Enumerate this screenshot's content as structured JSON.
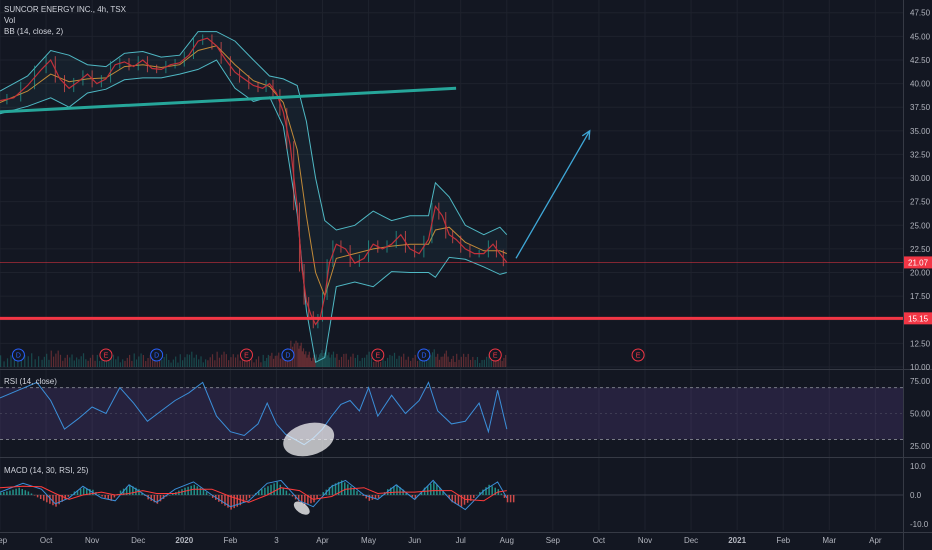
{
  "header": {
    "symbol_title": "SUNCOR ENERGY INC., 4h, TSX",
    "vol_label": "Vol",
    "bb_label": "BB (14, close, 2)",
    "rsi_label": "RSI (14, close)",
    "macd_label": "MACD (14, 30, RSI, 25)"
  },
  "colors": {
    "background": "#131722",
    "price": "#c2303a",
    "bb_bands": "#4fb8c4",
    "bb_basis": "#d4963a",
    "trendline": "#26a69a",
    "support": "#f23645",
    "rsi_line": "#3b8fd9",
    "rsi_band": "#7e57c2",
    "macd_line": "#3b8fd9",
    "signal_line": "#ff3b3b",
    "hist_up": "#26a69a",
    "hist_down": "#ef5350"
  },
  "chart_data": [
    {
      "type": "line",
      "panel": "price",
      "y_ticks": [
        "47.50",
        "45.00",
        "42.50",
        "40.00",
        "37.50",
        "35.00",
        "32.50",
        "30.00",
        "27.50",
        "25.00",
        "22.50",
        "20.00",
        "17.50",
        "15.00",
        "12.50",
        "10.00"
      ],
      "ylim": [
        10,
        48
      ],
      "x_labels": [
        "Sep",
        "Oct",
        "Nov",
        "Dec",
        "2020",
        "Feb",
        "3",
        "Apr",
        "May",
        "Jun",
        "Jul",
        "Aug",
        "Sep",
        "Oct",
        "Nov",
        "Dec",
        "2021",
        "Feb",
        "Mar",
        "Apr"
      ],
      "x_label_months": [
        0,
        1,
        2,
        3,
        4,
        5,
        6,
        7,
        8,
        9,
        10,
        11,
        12,
        13,
        14,
        15,
        16,
        17,
        18,
        19
      ],
      "xlim": [
        0,
        19.6
      ],
      "close": [
        [
          0.0,
          38.2
        ],
        [
          0.3,
          38.5
        ],
        [
          0.6,
          39.8
        ],
        [
          0.9,
          41.5
        ],
        [
          1.1,
          42.5
        ],
        [
          1.3,
          40.5
        ],
        [
          1.5,
          39.5
        ],
        [
          1.7,
          40.2
        ],
        [
          1.9,
          41.0
        ],
        [
          2.1,
          40.0
        ],
        [
          2.3,
          40.5
        ],
        [
          2.5,
          42.0
        ],
        [
          2.7,
          42.3
        ],
        [
          2.9,
          41.8
        ],
        [
          3.1,
          42.5
        ],
        [
          3.3,
          41.6
        ],
        [
          3.5,
          41.5
        ],
        [
          3.7,
          42.0
        ],
        [
          3.9,
          42.2
        ],
        [
          4.1,
          43.0
        ],
        [
          4.3,
          44.5
        ],
        [
          4.5,
          44.8
        ],
        [
          4.7,
          44.0
        ],
        [
          4.9,
          42.5
        ],
        [
          5.1,
          41.2
        ],
        [
          5.3,
          40.5
        ],
        [
          5.5,
          39.8
        ],
        [
          5.7,
          39.5
        ],
        [
          5.85,
          40.0
        ],
        [
          6.0,
          39.0
        ],
        [
          6.15,
          37.0
        ],
        [
          6.3,
          33.5
        ],
        [
          6.45,
          27.0
        ],
        [
          6.55,
          20.5
        ],
        [
          6.65,
          17.0
        ],
        [
          6.75,
          15.5
        ],
        [
          6.85,
          14.5
        ],
        [
          6.95,
          15.2
        ],
        [
          7.05,
          17.5
        ],
        [
          7.15,
          21.0
        ],
        [
          7.3,
          23.0
        ],
        [
          7.5,
          22.5
        ],
        [
          7.7,
          21.0
        ],
        [
          7.9,
          21.5
        ],
        [
          8.1,
          23.0
        ],
        [
          8.3,
          22.5
        ],
        [
          8.5,
          23.0
        ],
        [
          8.7,
          24.0
        ],
        [
          8.9,
          22.5
        ],
        [
          9.1,
          22.0
        ],
        [
          9.3,
          23.5
        ],
        [
          9.45,
          27.0
        ],
        [
          9.6,
          26.0
        ],
        [
          9.75,
          24.0
        ],
        [
          9.9,
          23.5
        ],
        [
          10.1,
          22.5
        ],
        [
          10.3,
          22.0
        ],
        [
          10.5,
          22.0
        ],
        [
          10.7,
          23.0
        ],
        [
          10.85,
          22.0
        ],
        [
          11.0,
          21.07
        ]
      ],
      "bb_upper": [
        [
          0.0,
          39.2
        ],
        [
          0.6,
          40.8
        ],
        [
          1.1,
          43.5
        ],
        [
          1.5,
          43.0
        ],
        [
          1.9,
          42.0
        ],
        [
          2.3,
          41.8
        ],
        [
          2.7,
          43.2
        ],
        [
          3.1,
          43.4
        ],
        [
          3.5,
          42.8
        ],
        [
          3.9,
          43.0
        ],
        [
          4.3,
          45.5
        ],
        [
          4.7,
          45.5
        ],
        [
          5.1,
          44.5
        ],
        [
          5.5,
          42.5
        ],
        [
          5.85,
          40.8
        ],
        [
          6.15,
          40.5
        ],
        [
          6.45,
          39.8
        ],
        [
          6.65,
          36.0
        ],
        [
          6.85,
          30.0
        ],
        [
          7.05,
          25.5
        ],
        [
          7.3,
          24.5
        ],
        [
          7.7,
          25.0
        ],
        [
          8.1,
          26.5
        ],
        [
          8.5,
          25.5
        ],
        [
          8.9,
          26.0
        ],
        [
          9.3,
          26.0
        ],
        [
          9.45,
          29.5
        ],
        [
          9.75,
          28.0
        ],
        [
          10.1,
          25.0
        ],
        [
          10.5,
          24.0
        ],
        [
          10.85,
          24.8
        ],
        [
          11.0,
          24.0
        ]
      ],
      "bb_basis": [
        [
          0.0,
          38.0
        ],
        [
          0.6,
          39.2
        ],
        [
          1.1,
          41.0
        ],
        [
          1.5,
          40.2
        ],
        [
          1.9,
          40.5
        ],
        [
          2.3,
          40.6
        ],
        [
          2.7,
          41.8
        ],
        [
          3.1,
          42.0
        ],
        [
          3.5,
          41.7
        ],
        [
          3.9,
          42.0
        ],
        [
          4.3,
          43.5
        ],
        [
          4.7,
          44.0
        ],
        [
          5.1,
          42.0
        ],
        [
          5.5,
          40.3
        ],
        [
          5.85,
          39.7
        ],
        [
          6.15,
          38.0
        ],
        [
          6.45,
          33.0
        ],
        [
          6.65,
          26.0
        ],
        [
          6.85,
          20.0
        ],
        [
          7.05,
          17.5
        ],
        [
          7.3,
          21.5
        ],
        [
          7.7,
          22.0
        ],
        [
          8.1,
          22.5
        ],
        [
          8.5,
          22.8
        ],
        [
          8.9,
          23.0
        ],
        [
          9.3,
          23.0
        ],
        [
          9.45,
          24.5
        ],
        [
          9.75,
          24.8
        ],
        [
          10.1,
          23.2
        ],
        [
          10.5,
          22.3
        ],
        [
          10.85,
          22.3
        ],
        [
          11.0,
          22.0
        ]
      ],
      "bb_lower": [
        [
          0.0,
          36.8
        ],
        [
          0.6,
          37.6
        ],
        [
          1.1,
          38.5
        ],
        [
          1.5,
          37.5
        ],
        [
          1.9,
          39.0
        ],
        [
          2.3,
          39.4
        ],
        [
          2.7,
          40.4
        ],
        [
          3.1,
          40.6
        ],
        [
          3.5,
          40.6
        ],
        [
          3.9,
          41.0
        ],
        [
          4.3,
          41.5
        ],
        [
          4.7,
          42.5
        ],
        [
          5.1,
          39.5
        ],
        [
          5.5,
          38.1
        ],
        [
          5.85,
          38.6
        ],
        [
          6.15,
          35.5
        ],
        [
          6.45,
          26.2
        ],
        [
          6.65,
          16.0
        ],
        [
          6.85,
          10.5
        ],
        [
          7.05,
          11.0
        ],
        [
          7.3,
          18.5
        ],
        [
          7.7,
          19.0
        ],
        [
          8.1,
          18.5
        ],
        [
          8.5,
          20.1
        ],
        [
          8.9,
          20.0
        ],
        [
          9.3,
          20.0
        ],
        [
          9.45,
          19.5
        ],
        [
          9.75,
          21.6
        ],
        [
          10.1,
          21.4
        ],
        [
          10.5,
          20.6
        ],
        [
          10.85,
          19.8
        ],
        [
          11.0,
          20.0
        ]
      ],
      "trendline": [
        [
          0.0,
          37.0
        ],
        [
          9.9,
          39.5
        ]
      ],
      "projection_arrow": [
        [
          11.2,
          21.5
        ],
        [
          12.8,
          35.0
        ]
      ],
      "support_level": 15.15,
      "last_price": 21.07,
      "price_tags": [
        "21.07",
        "15.15"
      ],
      "events": [
        {
          "label": "D",
          "month": 0.4
        },
        {
          "label": "E",
          "month": 2.3
        },
        {
          "label": "D",
          "month": 3.4
        },
        {
          "label": "E",
          "month": 5.35
        },
        {
          "label": "D",
          "month": 6.25
        },
        {
          "label": "E",
          "month": 8.2
        },
        {
          "label": "D",
          "month": 9.2
        },
        {
          "label": "E",
          "month": 10.75
        },
        {
          "label": "E",
          "month": 13.85
        }
      ]
    },
    {
      "type": "line",
      "panel": "rsi",
      "y_ticks": [
        "75.00",
        "50.00",
        "25.00"
      ],
      "ylim": [
        18,
        82
      ],
      "band": [
        30,
        70
      ],
      "values": [
        [
          0.0,
          62
        ],
        [
          0.4,
          68
        ],
        [
          0.8,
          74
        ],
        [
          1.1,
          60
        ],
        [
          1.4,
          38
        ],
        [
          1.7,
          46
        ],
        [
          2.0,
          55
        ],
        [
          2.3,
          50
        ],
        [
          2.6,
          70
        ],
        [
          2.9,
          58
        ],
        [
          3.2,
          44
        ],
        [
          3.5,
          52
        ],
        [
          3.8,
          60
        ],
        [
          4.1,
          66
        ],
        [
          4.4,
          74
        ],
        [
          4.7,
          48
        ],
        [
          5.0,
          36
        ],
        [
          5.3,
          33
        ],
        [
          5.6,
          42
        ],
        [
          5.8,
          58
        ],
        [
          6.0,
          42
        ],
        [
          6.2,
          34
        ],
        [
          6.4,
          30
        ],
        [
          6.6,
          26
        ],
        [
          6.8,
          31
        ],
        [
          7.0,
          38
        ],
        [
          7.2,
          48
        ],
        [
          7.4,
          57
        ],
        [
          7.6,
          60
        ],
        [
          7.8,
          52
        ],
        [
          8.0,
          70
        ],
        [
          8.2,
          48
        ],
        [
          8.5,
          64
        ],
        [
          8.8,
          50
        ],
        [
          9.1,
          60
        ],
        [
          9.3,
          74
        ],
        [
          9.5,
          52
        ],
        [
          9.8,
          42
        ],
        [
          10.1,
          44
        ],
        [
          10.4,
          58
        ],
        [
          10.6,
          36
        ],
        [
          10.8,
          68
        ],
        [
          11.0,
          38
        ]
      ]
    },
    {
      "type": "bar",
      "panel": "macd",
      "y_ticks": [
        "10.0",
        "0.0",
        "-10.0"
      ],
      "ylim": [
        -12,
        12
      ],
      "histogram": [
        [
          0.0,
          0.8
        ],
        [
          0.2,
          1.5
        ],
        [
          0.4,
          2.5
        ],
        [
          0.6,
          1.2
        ],
        [
          0.8,
          -0.8
        ],
        [
          1.0,
          -2.5
        ],
        [
          1.2,
          -4.0
        ],
        [
          1.4,
          -1.5
        ],
        [
          1.6,
          1.2
        ],
        [
          1.8,
          2.5
        ],
        [
          2.0,
          1.8
        ],
        [
          2.2,
          -0.5
        ],
        [
          2.4,
          -2.0
        ],
        [
          2.6,
          1.5
        ],
        [
          2.8,
          3.5
        ],
        [
          3.0,
          2.0
        ],
        [
          3.2,
          -1.5
        ],
        [
          3.4,
          -3.0
        ],
        [
          3.6,
          -0.5
        ],
        [
          3.8,
          1.0
        ],
        [
          4.0,
          2.5
        ],
        [
          4.2,
          3.5
        ],
        [
          4.4,
          2.0
        ],
        [
          4.6,
          -1.0
        ],
        [
          4.8,
          -3.0
        ],
        [
          5.0,
          -5.0
        ],
        [
          5.2,
          -3.5
        ],
        [
          5.4,
          -1.0
        ],
        [
          5.6,
          1.5
        ],
        [
          5.8,
          3.0
        ],
        [
          6.0,
          4.5
        ],
        [
          6.2,
          1.5
        ],
        [
          6.4,
          -1.5
        ],
        [
          6.6,
          -3.5
        ],
        [
          6.8,
          -2.5
        ],
        [
          7.0,
          1.0
        ],
        [
          7.2,
          3.5
        ],
        [
          7.4,
          5.0
        ],
        [
          7.6,
          3.0
        ],
        [
          7.8,
          0.5
        ],
        [
          8.0,
          -2.0
        ],
        [
          8.2,
          -1.0
        ],
        [
          8.4,
          2.0
        ],
        [
          8.6,
          3.5
        ],
        [
          8.8,
          1.0
        ],
        [
          9.0,
          -1.5
        ],
        [
          9.2,
          2.5
        ],
        [
          9.4,
          4.5
        ],
        [
          9.6,
          1.5
        ],
        [
          9.8,
          -2.5
        ],
        [
          10.0,
          -4.0
        ],
        [
          10.2,
          -2.0
        ],
        [
          10.4,
          1.0
        ],
        [
          10.6,
          3.5
        ],
        [
          10.8,
          2.0
        ],
        [
          11.0,
          -2.5
        ]
      ],
      "macd_line": [
        [
          0.0,
          1.0
        ],
        [
          0.5,
          4.0
        ],
        [
          0.9,
          2.0
        ],
        [
          1.2,
          -3.0
        ],
        [
          1.5,
          -1.0
        ],
        [
          1.8,
          3.0
        ],
        [
          2.2,
          -1.0
        ],
        [
          2.5,
          -2.0
        ],
        [
          2.8,
          3.5
        ],
        [
          3.1,
          0.5
        ],
        [
          3.4,
          -2.5
        ],
        [
          3.8,
          2.0
        ],
        [
          4.2,
          4.5
        ],
        [
          4.6,
          0.0
        ],
        [
          5.0,
          -4.0
        ],
        [
          5.4,
          -2.0
        ],
        [
          5.8,
          4.0
        ],
        [
          6.1,
          5.0
        ],
        [
          6.5,
          -2.0
        ],
        [
          6.8,
          -4.0
        ],
        [
          7.2,
          3.0
        ],
        [
          7.5,
          5.0
        ],
        [
          7.9,
          0.0
        ],
        [
          8.2,
          -1.5
        ],
        [
          8.6,
          3.5
        ],
        [
          9.0,
          -1.5
        ],
        [
          9.4,
          5.0
        ],
        [
          9.8,
          -2.0
        ],
        [
          10.1,
          -5.0
        ],
        [
          10.5,
          1.5
        ],
        [
          10.8,
          4.5
        ],
        [
          11.0,
          -1.0
        ]
      ],
      "signal_line": [
        [
          0.0,
          2.5
        ],
        [
          0.5,
          3.0
        ],
        [
          0.9,
          2.8
        ],
        [
          1.2,
          0.5
        ],
        [
          1.5,
          -1.5
        ],
        [
          1.8,
          0.0
        ],
        [
          2.2,
          1.0
        ],
        [
          2.5,
          0.0
        ],
        [
          2.8,
          0.5
        ],
        [
          3.1,
          1.5
        ],
        [
          3.4,
          0.5
        ],
        [
          3.8,
          0.5
        ],
        [
          4.2,
          2.0
        ],
        [
          4.6,
          2.0
        ],
        [
          5.0,
          -0.5
        ],
        [
          5.4,
          -2.5
        ],
        [
          5.8,
          0.0
        ],
        [
          6.1,
          2.5
        ],
        [
          6.5,
          1.5
        ],
        [
          6.8,
          -1.5
        ],
        [
          7.2,
          -0.5
        ],
        [
          7.5,
          2.0
        ],
        [
          7.9,
          2.5
        ],
        [
          8.2,
          0.5
        ],
        [
          8.6,
          1.0
        ],
        [
          9.0,
          1.0
        ],
        [
          9.4,
          1.5
        ],
        [
          9.8,
          1.5
        ],
        [
          10.1,
          -1.5
        ],
        [
          10.5,
          -2.0
        ],
        [
          10.8,
          1.0
        ],
        [
          11.0,
          1.5
        ]
      ]
    }
  ]
}
